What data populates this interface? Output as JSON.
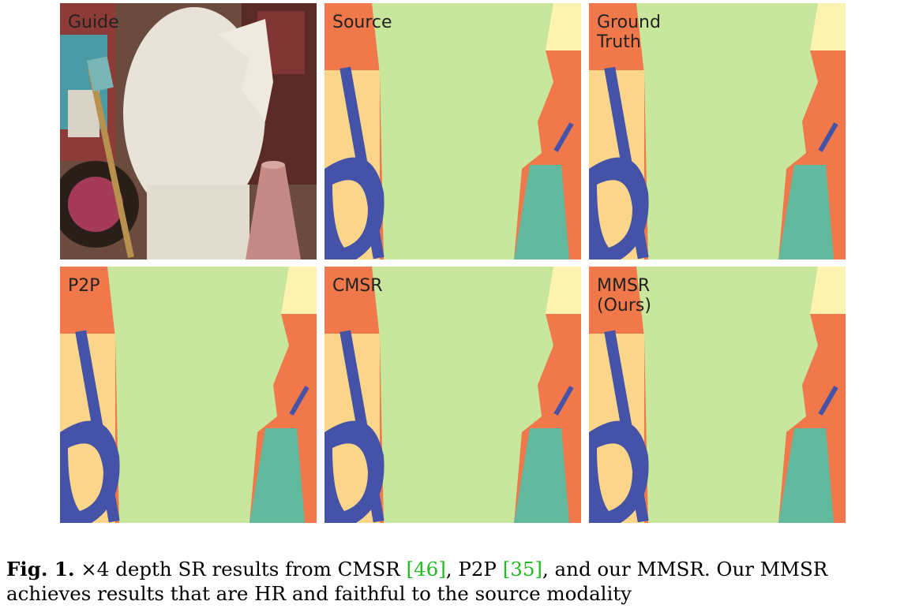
{
  "figure": {
    "panels": [
      {
        "id": "guide",
        "label": "Guide",
        "kind": "rgb"
      },
      {
        "id": "source",
        "label": "Source",
        "kind": "depth-blocky"
      },
      {
        "id": "ground-truth",
        "label": "Ground\nTruth",
        "kind": "depth"
      },
      {
        "id": "p2p",
        "label": "P2P",
        "kind": "depth-noisy"
      },
      {
        "id": "cmsr",
        "label": "CMSR",
        "kind": "depth-blurry"
      },
      {
        "id": "mmsr",
        "label": "MMSR\n(Ours)",
        "kind": "depth"
      }
    ],
    "colors": {
      "far": "#f0784a",
      "mid_far": "#fbd58a",
      "light": "#fdf3b0",
      "head": "#c8e69c",
      "cone": "#63b99e",
      "near": "#4452a8"
    }
  },
  "caption": {
    "label": "Fig. 1.",
    "text_1": " ×4 depth SR results from CMSR ",
    "cite_1": "[46]",
    "text_2": ", P2P ",
    "cite_2": "[35]",
    "text_3": ", and our MMSR. Our MMSR achieves results that are HR and faithful to the source modality"
  }
}
